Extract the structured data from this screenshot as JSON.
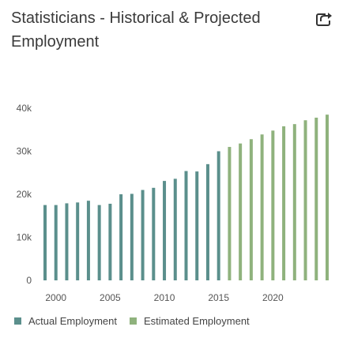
{
  "header": {
    "title": "Statisticians - Historical & Projected Employment",
    "share_icon": "share-arrow-icon"
  },
  "colors": {
    "actual": "#5b8f8c",
    "estimated": "#8fb27d",
    "axis_text": "#555555",
    "title": "#3a3a3a"
  },
  "chart_data": {
    "type": "bar",
    "title": "Statisticians - Historical & Projected Employment",
    "xlabel": "",
    "ylabel": "",
    "ylim": [
      0,
      40000
    ],
    "yticks": [
      0,
      10000,
      20000,
      30000,
      40000
    ],
    "ytick_labels": [
      "0",
      "10k",
      "20k",
      "30k",
      "40k"
    ],
    "xticks": [
      2000,
      2005,
      2010,
      2015,
      2020
    ],
    "xtick_labels": [
      "2000",
      "2005",
      "2010",
      "2015",
      "2020"
    ],
    "grid": false,
    "legend_position": "bottom-left",
    "series": [
      {
        "name": "Actual Employment",
        "x": [
          1999,
          2000,
          2001,
          2002,
          2003,
          2004,
          2005,
          2006,
          2007,
          2008,
          2009,
          2010,
          2011,
          2012,
          2013,
          2014,
          2015
        ],
        "values": [
          17500,
          17500,
          17900,
          18100,
          18500,
          17500,
          17800,
          20000,
          20100,
          21000,
          21500,
          23100,
          23600,
          25400,
          25300,
          27000,
          30000
        ]
      },
      {
        "name": "Estimated Employment",
        "x": [
          2016,
          2017,
          2018,
          2019,
          2020,
          2021,
          2022,
          2023,
          2024,
          2025
        ],
        "values": [
          31000,
          31800,
          32800,
          33900,
          34800,
          35800,
          36300,
          37200,
          37800,
          38500
        ]
      }
    ]
  },
  "legend": {
    "actual_label": "Actual Employment",
    "estimated_label": "Estimated Employment"
  }
}
